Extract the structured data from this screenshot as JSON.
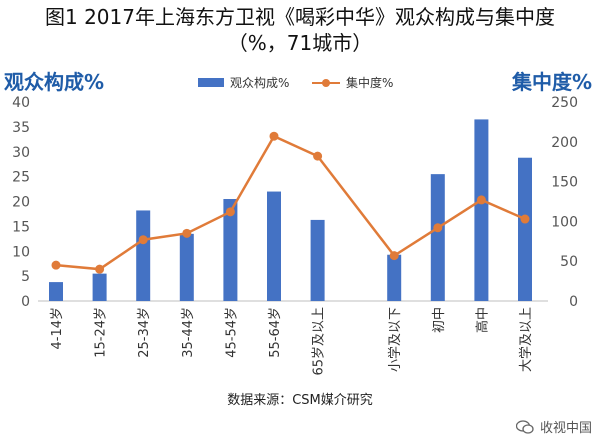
{
  "title_line1": "图1 2017年上海东方卫视《喝彩中华》观众构成与集中度",
  "title_line2": "（%，71城市）",
  "left_axis_title": "观众构成%",
  "right_axis_title": "集中度%",
  "source": "数据来源：CSM媒介研究",
  "watermark": "收视中国",
  "colors": {
    "bar": "#4472c4",
    "line": "#e07b39",
    "axis_title": "#1f5ca8"
  },
  "chart_data": {
    "type": "bar",
    "categories": [
      "4-14岁",
      "15-24岁",
      "25-34岁",
      "35-44岁",
      "45-54岁",
      "55-64岁",
      "65岁及以上",
      "小学及以下",
      "初中",
      "高中",
      "大学及以上"
    ],
    "gap_after_index": 6,
    "series": [
      {
        "name": "观众构成%",
        "type": "bar",
        "axis": "left",
        "values": [
          3.8,
          5.5,
          18.2,
          13.5,
          20.5,
          22.0,
          16.3,
          9.3,
          25.5,
          36.5,
          28.8
        ]
      },
      {
        "name": "集中度%",
        "type": "line",
        "axis": "right",
        "values": [
          45,
          40,
          77,
          85,
          112,
          207,
          182,
          57,
          92,
          127,
          103
        ]
      }
    ],
    "y_left": {
      "min": 0,
      "max": 40,
      "ticks": [
        0,
        5,
        10,
        15,
        20,
        25,
        30,
        35,
        40
      ]
    },
    "y_right": {
      "min": 0,
      "max": 250,
      "ticks": [
        0,
        50,
        100,
        150,
        200,
        250
      ]
    },
    "legend": [
      "观众构成%",
      "集中度%"
    ],
    "grid": false
  }
}
